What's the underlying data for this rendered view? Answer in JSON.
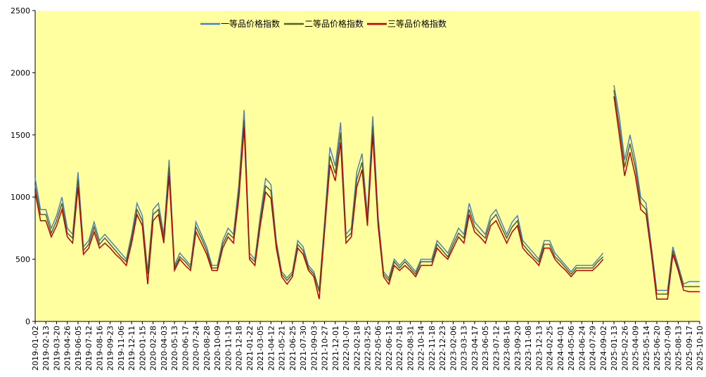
{
  "chart_data": {
    "type": "line",
    "categories": [
      "2019-01-02",
      null,
      "2019-02-13",
      null,
      "2019-03-20",
      null,
      "2019-04-26",
      null,
      "2019-06-05",
      null,
      "2019-07-12",
      null,
      "2019-08-16",
      null,
      "2019-09-23",
      null,
      "2019-11-06",
      null,
      "2019-12-11",
      null,
      "2020-01-15",
      null,
      "2020-02-28",
      null,
      "2020-04-03",
      null,
      "2020-05-13",
      null,
      "2020-06-17",
      null,
      "2020-07-24",
      null,
      "2020-08-28",
      null,
      "2020-10-09",
      null,
      "2020-11-13",
      null,
      "2020-12-18",
      null,
      "2021-01-22",
      null,
      "2021-03-05",
      null,
      "2021-04-12",
      null,
      "2021-05-21",
      null,
      "2021-06-25",
      null,
      "2021-07-30",
      null,
      "2021-09-03",
      null,
      "2021-10-27",
      null,
      "2021-12-01",
      null,
      "2022-01-07",
      null,
      "2022-02-18",
      null,
      "2022-03-25",
      null,
      "2022-05-06",
      null,
      "2022-06-13",
      null,
      "2022-07-18",
      null,
      "2022-08-31",
      null,
      "2022-10-14",
      null,
      "2022-11-18",
      null,
      "2022-12-23",
      null,
      "2023-02-06",
      null,
      "2023-03-13",
      null,
      "2023-04-17",
      null,
      "2023-06-05",
      null,
      "2023-07-12",
      null,
      "2023-08-16",
      null,
      "2023-09-20",
      null,
      "2023-11-08",
      null,
      "2023-12-13",
      null,
      "2024-02-25",
      null,
      "2024-04-01",
      null,
      "2024-05-06",
      null,
      "2024-06-24",
      null,
      "2024-07-29",
      null,
      "2024-09-02",
      null,
      "2025-01-13",
      null,
      "2025-02-26",
      null,
      "2025-04-09",
      null,
      "2025-05-14",
      null,
      "2025-06-20",
      null,
      "2025-07-09",
      null,
      "2025-08-13",
      null,
      "2025-09-17",
      null,
      "2025-10-10"
    ],
    "series": [
      {
        "name": "一等品价格指数",
        "color": "#4f81bd",
        "values": [
          1150,
          900,
          900,
          750,
          850,
          1000,
          750,
          700,
          1200,
          600,
          650,
          800,
          650,
          700,
          650,
          600,
          550,
          500,
          700,
          950,
          850,
          400,
          900,
          950,
          700,
          1300,
          450,
          550,
          500,
          450,
          800,
          700,
          600,
          450,
          450,
          650,
          750,
          700,
          1100,
          1700,
          550,
          500,
          850,
          1150,
          1100,
          650,
          400,
          350,
          400,
          650,
          600,
          450,
          400,
          250,
          800,
          1400,
          1250,
          1600,
          700,
          750,
          1200,
          1350,
          850,
          1650,
          850,
          400,
          350,
          500,
          450,
          500,
          450,
          400,
          500,
          500,
          500,
          650,
          600,
          550,
          650,
          750,
          700,
          950,
          800,
          750,
          700,
          850,
          900,
          800,
          700,
          800,
          850,
          650,
          600,
          550,
          500,
          650,
          650,
          550,
          500,
          450,
          400,
          450,
          450,
          450,
          450,
          500,
          550,
          null,
          1900,
          1650,
          1300,
          1500,
          1300,
          1000,
          950,
          600,
          250,
          250,
          250,
          600,
          450,
          300,
          320,
          320,
          320
        ]
      },
      {
        "name": "二等品价格指数",
        "color": "#4f6228",
        "values": [
          1090,
          860,
          860,
          710,
          810,
          950,
          710,
          670,
          1140,
          570,
          620,
          760,
          620,
          670,
          620,
          570,
          520,
          480,
          670,
          900,
          810,
          380,
          860,
          900,
          670,
          1240,
          430,
          520,
          480,
          430,
          760,
          670,
          570,
          430,
          430,
          620,
          710,
          670,
          1050,
          1620,
          520,
          480,
          810,
          1090,
          1050,
          620,
          380,
          330,
          380,
          620,
          570,
          430,
          380,
          240,
          760,
          1330,
          1190,
          1520,
          670,
          710,
          1140,
          1280,
          810,
          1570,
          810,
          380,
          330,
          480,
          430,
          480,
          430,
          380,
          480,
          480,
          480,
          620,
          570,
          520,
          620,
          710,
          670,
          900,
          760,
          710,
          670,
          810,
          860,
          760,
          670,
          760,
          810,
          620,
          570,
          520,
          480,
          620,
          620,
          520,
          480,
          430,
          380,
          430,
          430,
          430,
          430,
          480,
          520,
          null,
          1860,
          1570,
          1240,
          1430,
          1240,
          950,
          900,
          570,
          220,
          220,
          220,
          570,
          430,
          280,
          280,
          280,
          280
        ]
      },
      {
        "name": "三等品价格指数",
        "color": "#c00000",
        "values": [
          1040,
          810,
          810,
          680,
          770,
          900,
          680,
          630,
          1080,
          540,
          590,
          720,
          590,
          630,
          590,
          540,
          500,
          450,
          630,
          860,
          770,
          300,
          810,
          860,
          630,
          1170,
          410,
          500,
          450,
          410,
          720,
          630,
          540,
          410,
          410,
          590,
          680,
          630,
          990,
          1560,
          500,
          450,
          770,
          1040,
          990,
          590,
          360,
          300,
          360,
          590,
          540,
          410,
          360,
          180,
          720,
          1260,
          1130,
          1440,
          630,
          680,
          1080,
          1220,
          770,
          1500,
          770,
          360,
          300,
          450,
          410,
          450,
          410,
          360,
          450,
          450,
          450,
          590,
          540,
          500,
          590,
          680,
          630,
          860,
          720,
          680,
          630,
          770,
          810,
          720,
          630,
          720,
          770,
          590,
          540,
          500,
          450,
          590,
          590,
          500,
          450,
          410,
          360,
          410,
          410,
          410,
          410,
          450,
          500,
          null,
          1810,
          1500,
          1170,
          1360,
          1170,
          900,
          860,
          540,
          180,
          180,
          180,
          540,
          410,
          250,
          240,
          240,
          240
        ]
      }
    ],
    "ylim": [
      0,
      2500
    ],
    "yticks": [
      0,
      500,
      1000,
      1500,
      2000,
      2500
    ],
    "plot_background": "#ffffa0",
    "legend": "top"
  }
}
